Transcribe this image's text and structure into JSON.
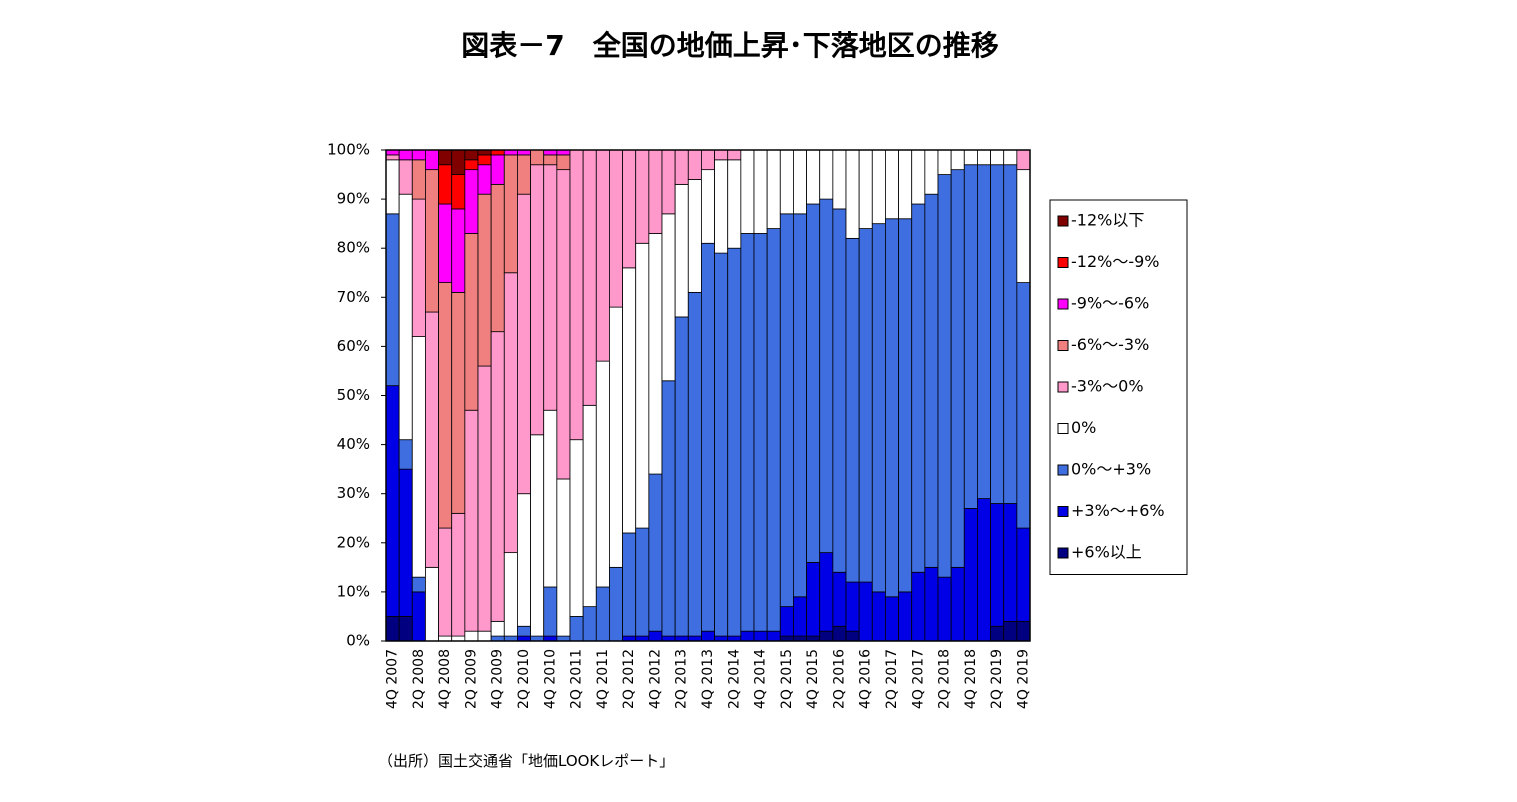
{
  "chart_data": {
    "type": "stacked_bar",
    "title": "図表－7　全国の地価上昇･下落地区の推移",
    "note": "（出所）国土交通省「地価LOOKレポート」",
    "categories": [
      "4Q 2007",
      null,
      "2Q 2008",
      null,
      "4Q 2008",
      null,
      "2Q 2009",
      null,
      "4Q 2009",
      null,
      "2Q 2010",
      null,
      "4Q 2010",
      null,
      "2Q 2011",
      null,
      "4Q 2011",
      null,
      "2Q 2012",
      null,
      "4Q 2012",
      null,
      "2Q 2013",
      null,
      "4Q 2013",
      null,
      "2Q 2014",
      null,
      "4Q 2014",
      null,
      "2Q 2015",
      null,
      "4Q 2015",
      null,
      "2Q 2016",
      null,
      "4Q 2016",
      null,
      "2Q 2017",
      null,
      "4Q 2017",
      null,
      "2Q 2018",
      null,
      "4Q 2018",
      null,
      "2Q 2019",
      null,
      "4Q 2019"
    ],
    "ylim": [
      0,
      100
    ],
    "yticks": [
      {
        "value": 0,
        "label": "0%"
      },
      {
        "value": 10,
        "label": "10%"
      },
      {
        "value": 20,
        "label": "20%"
      },
      {
        "value": 30,
        "label": "30%"
      },
      {
        "value": 40,
        "label": "40%"
      },
      {
        "value": 50,
        "label": "50%"
      },
      {
        "value": 60,
        "label": "60%"
      },
      {
        "value": 70,
        "label": "70%"
      },
      {
        "value": 80,
        "label": "80%"
      },
      {
        "value": 90,
        "label": "90%"
      },
      {
        "value": 100,
        "label": "100%"
      }
    ],
    "legend": "right",
    "series": [
      {
        "name": "+6%以上",
        "color": "#000080",
        "values": [
          5,
          5,
          0,
          0,
          0,
          0,
          0,
          0,
          0,
          0,
          0,
          0,
          0,
          0,
          0,
          0,
          0,
          0,
          0,
          0,
          0,
          0,
          0,
          0,
          0,
          0,
          0,
          0,
          0,
          0,
          1,
          1,
          1,
          2,
          3,
          2,
          0,
          0,
          0,
          0,
          0,
          0,
          0,
          0,
          0,
          0,
          3,
          4,
          4
        ]
      },
      {
        "name": "+3%～+6%",
        "color": "#0000e6",
        "values": [
          47,
          30,
          10,
          0,
          0,
          0,
          0,
          0,
          0,
          0,
          1,
          0,
          1,
          0,
          0,
          0,
          0,
          0,
          1,
          1,
          2,
          1,
          1,
          1,
          2,
          1,
          1,
          2,
          2,
          2,
          6,
          8,
          15,
          16,
          11,
          10,
          12,
          10,
          9,
          10,
          14,
          15,
          13,
          15,
          27,
          29,
          25,
          24,
          19
        ]
      },
      {
        "name": "0%～+3%",
        "color": "#3f6ee0",
        "values": [
          35,
          6,
          3,
          0,
          0,
          0,
          0,
          0,
          1,
          1,
          2,
          1,
          10,
          1,
          5,
          7,
          11,
          15,
          21,
          22,
          32,
          52,
          65,
          70,
          79,
          78,
          79,
          81,
          81,
          82,
          80,
          78,
          73,
          72,
          74,
          70,
          72,
          75,
          77,
          76,
          75,
          76,
          82,
          81,
          70,
          68,
          69,
          69,
          50
        ]
      },
      {
        "name": "0%",
        "color": "#ffffff",
        "values": [
          11,
          50,
          49,
          15,
          1,
          1,
          2,
          2,
          3,
          17,
          27,
          41,
          36,
          32,
          36,
          41,
          46,
          53,
          54,
          58,
          49,
          34,
          27,
          23,
          15,
          19,
          18,
          17,
          17,
          16,
          13,
          13,
          11,
          10,
          12,
          18,
          16,
          15,
          14,
          14,
          11,
          9,
          5,
          4,
          3,
          3,
          3,
          3,
          23
        ]
      },
      {
        "name": "-3%～0%",
        "color": "#ff99cc",
        "values": [
          1,
          7,
          28,
          52,
          22,
          25,
          45,
          54,
          59,
          57,
          61,
          55,
          50,
          63,
          59,
          52,
          43,
          32,
          24,
          19,
          17,
          13,
          7,
          6,
          4,
          2,
          2,
          0,
          0,
          0,
          0,
          0,
          0,
          0,
          0,
          0,
          0,
          0,
          0,
          0,
          0,
          0,
          0,
          0,
          0,
          0,
          0,
          0,
          4
        ]
      },
      {
        "name": "-6%～-3%",
        "color": "#f08080",
        "values": [
          0,
          0,
          8,
          29,
          50,
          45,
          36,
          35,
          30,
          24,
          8,
          3,
          2,
          3,
          0,
          0,
          0,
          0,
          0,
          0,
          0,
          0,
          0,
          0,
          0,
          0,
          0,
          0,
          0,
          0,
          0,
          0,
          0,
          0,
          0,
          0,
          0,
          0,
          0,
          0,
          0,
          0,
          0,
          0,
          0,
          0,
          0,
          0,
          0
        ]
      },
      {
        "name": "-9%～-6%",
        "color": "#ff00ff",
        "values": [
          1,
          2,
          2,
          4,
          16,
          17,
          13,
          6,
          6,
          1,
          1,
          0,
          1,
          1,
          0,
          0,
          0,
          0,
          0,
          0,
          0,
          0,
          0,
          0,
          0,
          0,
          0,
          0,
          0,
          0,
          0,
          0,
          0,
          0,
          0,
          0,
          0,
          0,
          0,
          0,
          0,
          0,
          0,
          0,
          0,
          0,
          0,
          0,
          0
        ]
      },
      {
        "name": "-12%～-9%",
        "color": "#ff0000",
        "values": [
          0,
          0,
          0,
          0,
          8,
          7,
          2,
          2,
          1,
          0,
          0,
          0,
          0,
          0,
          0,
          0,
          0,
          0,
          0,
          0,
          0,
          0,
          0,
          0,
          0,
          0,
          0,
          0,
          0,
          0,
          0,
          0,
          0,
          0,
          0,
          0,
          0,
          0,
          0,
          0,
          0,
          0,
          0,
          0,
          0,
          0,
          0,
          0,
          0
        ]
      },
      {
        "name": "-12%以下",
        "color": "#800000",
        "values": [
          0,
          0,
          0,
          0,
          3,
          5,
          2,
          1,
          0,
          0,
          0,
          0,
          0,
          0,
          0,
          0,
          0,
          0,
          0,
          0,
          0,
          0,
          0,
          0,
          0,
          0,
          0,
          0,
          0,
          0,
          0,
          0,
          0,
          0,
          0,
          0,
          0,
          0,
          0,
          0,
          0,
          0,
          0,
          0,
          0,
          0,
          0,
          0,
          0
        ]
      }
    ]
  }
}
